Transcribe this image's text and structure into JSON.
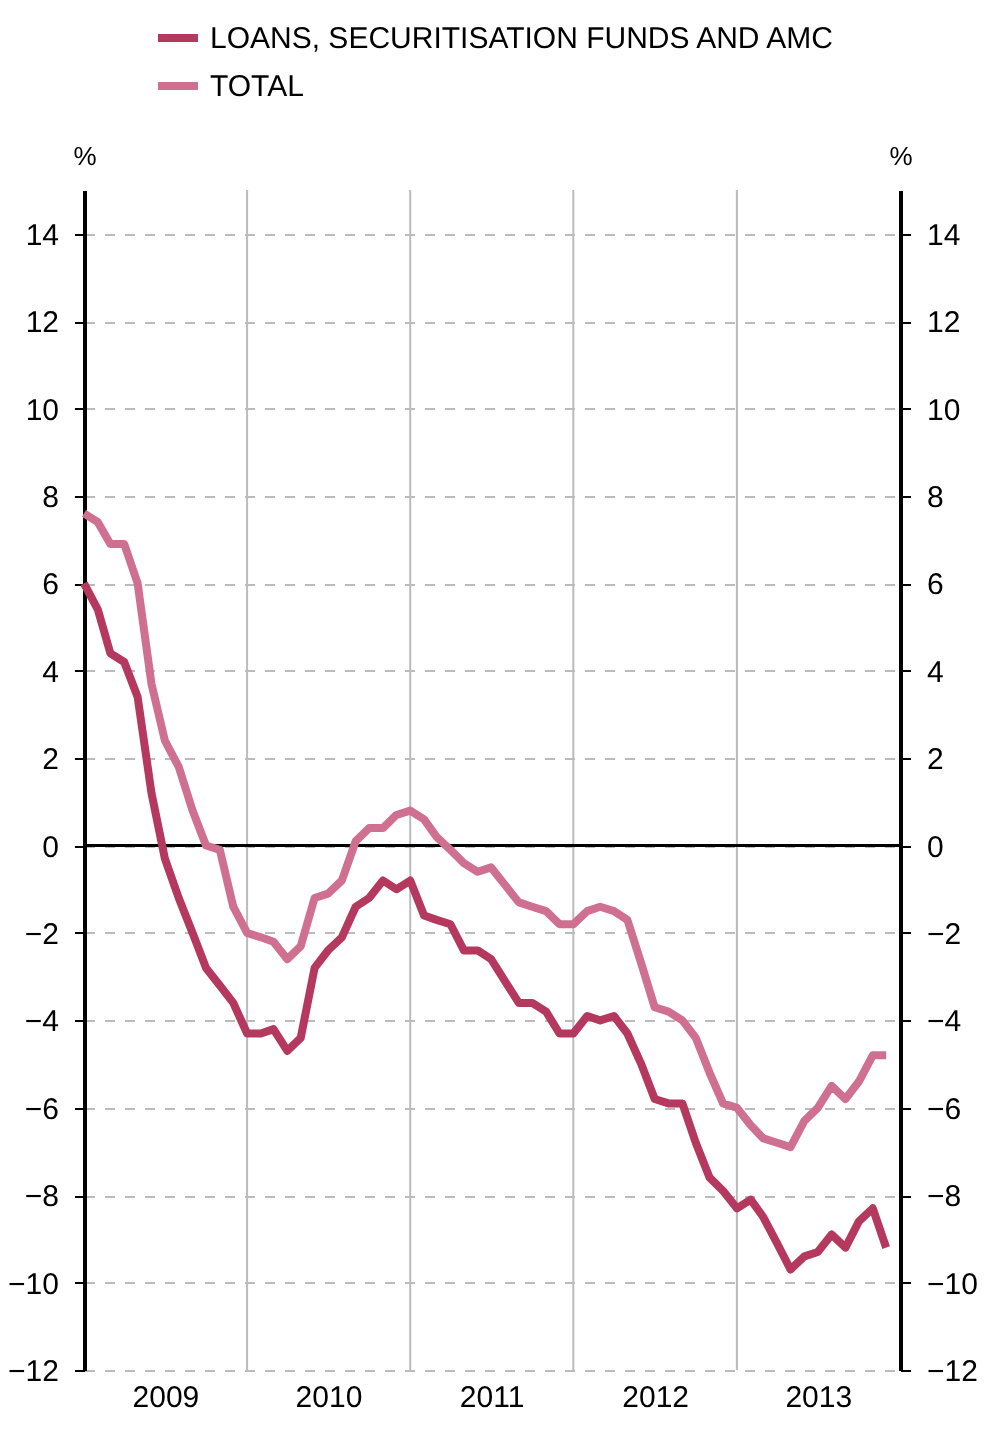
{
  "chart_data": {
    "type": "line",
    "ylabel": "%",
    "y2label": "%",
    "x": [
      "2009-01",
      "2009-02",
      "2009-03",
      "2009-04",
      "2009-05",
      "2009-06",
      "2009-07",
      "2009-08",
      "2009-09",
      "2009-10",
      "2009-11",
      "2009-12",
      "2010-01",
      "2010-02",
      "2010-03",
      "2010-04",
      "2010-05",
      "2010-06",
      "2010-07",
      "2010-08",
      "2010-09",
      "2010-10",
      "2010-11",
      "2010-12",
      "2011-01",
      "2011-02",
      "2011-03",
      "2011-04",
      "2011-05",
      "2011-06",
      "2011-07",
      "2011-08",
      "2011-09",
      "2011-10",
      "2011-11",
      "2011-12",
      "2012-01",
      "2012-02",
      "2012-03",
      "2012-04",
      "2012-05",
      "2012-06",
      "2012-07",
      "2012-08",
      "2012-09",
      "2012-10",
      "2012-11",
      "2012-12",
      "2013-01",
      "2013-02",
      "2013-03",
      "2013-04",
      "2013-05",
      "2013-06",
      "2013-07",
      "2013-08",
      "2013-09",
      "2013-10",
      "2013-11",
      "2013-12"
    ],
    "series": [
      {
        "name": "LOANS, SECURITISATION FUNDS AND AMC",
        "color": "#b5385f",
        "values": [
          6.0,
          5.4,
          4.4,
          4.2,
          3.4,
          1.2,
          -0.3,
          -1.2,
          -2.0,
          -2.8,
          -3.2,
          -3.6,
          -4.3,
          -4.3,
          -4.2,
          -4.7,
          -4.4,
          -2.8,
          -2.4,
          -2.1,
          -1.4,
          -1.2,
          -0.8,
          -1.0,
          -0.8,
          -1.6,
          -1.7,
          -1.8,
          -2.4,
          -2.4,
          -2.6,
          -3.1,
          -3.6,
          -3.6,
          -3.8,
          -4.3,
          -4.3,
          -3.9,
          -4.0,
          -3.9,
          -4.3,
          -5.0,
          -5.8,
          -5.9,
          -5.9,
          -6.8,
          -7.6,
          -7.9,
          -8.3,
          -8.1,
          -8.5,
          -9.1,
          -9.7,
          -9.4,
          -9.3,
          -8.9,
          -9.2,
          -8.6,
          -8.3,
          -9.2
        ]
      },
      {
        "name": "TOTAL",
        "color": "#d07090",
        "values": [
          7.6,
          7.4,
          6.9,
          6.9,
          6.0,
          3.7,
          2.4,
          1.8,
          0.8,
          0.0,
          -0.1,
          -1.4,
          -2.0,
          -2.1,
          -2.2,
          -2.6,
          -2.3,
          -1.2,
          -1.1,
          -0.8,
          0.1,
          0.4,
          0.4,
          0.7,
          0.8,
          0.6,
          0.2,
          -0.1,
          -0.4,
          -0.6,
          -0.5,
          -0.9,
          -1.3,
          -1.4,
          -1.5,
          -1.8,
          -1.8,
          -1.5,
          -1.4,
          -1.5,
          -1.7,
          -2.7,
          -3.7,
          -3.8,
          -4.0,
          -4.4,
          -5.2,
          -5.9,
          -6.0,
          -6.4,
          -6.7,
          -6.8,
          -6.9,
          -6.3,
          -6.0,
          -5.5,
          -5.8,
          -5.4,
          -4.8,
          -4.8
        ]
      }
    ],
    "xlim": [
      "2009-01",
      "2014-01"
    ],
    "xticks": [
      {
        "value": "2009-07",
        "label": "2009"
      },
      {
        "value": "2010-01",
        "label": null
      },
      {
        "value": "2010-07",
        "label": "2010"
      },
      {
        "value": "2011-01",
        "label": null
      },
      {
        "value": "2011-07",
        "label": "2011"
      },
      {
        "value": "2012-01",
        "label": null
      },
      {
        "value": "2012-07",
        "label": "2012"
      },
      {
        "value": "2013-01",
        "label": null
      },
      {
        "value": "2013-07",
        "label": "2013"
      }
    ],
    "ylim": [
      -12,
      15
    ],
    "yticks": [
      -12,
      -10,
      -8,
      -6,
      -4,
      -2,
      0,
      2,
      4,
      6,
      8,
      10,
      12,
      14
    ],
    "y2lim": [
      -12,
      15
    ],
    "y2ticks": [
      -12,
      -10,
      -8,
      -6,
      -4,
      -2,
      0,
      2,
      4,
      6,
      8,
      10,
      12,
      14
    ],
    "ref_lines": [
      {
        "axis": "y",
        "value": 0,
        "color": "#000000"
      }
    ],
    "grid": true,
    "legend": "top",
    "line_style": "solid",
    "marker": "none"
  }
}
